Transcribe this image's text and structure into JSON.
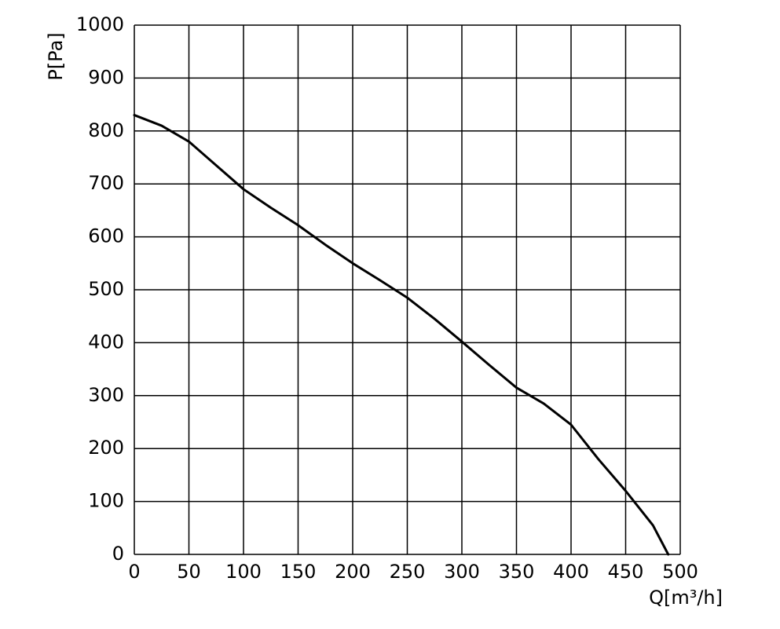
{
  "chart_data": {
    "type": "line",
    "ylabel": "P[Pa]",
    "xlabel": "Q[m³/h]",
    "x": [
      0,
      25,
      50,
      75,
      100,
      125,
      150,
      175,
      200,
      225,
      250,
      275,
      300,
      325,
      350,
      375,
      400,
      425,
      450,
      475,
      489
    ],
    "series": [
      {
        "color": "#000000",
        "values": [
          830,
          810,
          780,
          735,
          690,
          655,
          622,
          585,
          550,
          518,
          485,
          445,
          402,
          358,
          315,
          285,
          245,
          180,
          120,
          55,
          0
        ]
      }
    ],
    "xlim": [
      0,
      500
    ],
    "xticks": [
      0,
      50,
      100,
      150,
      200,
      250,
      300,
      350,
      400,
      450,
      500
    ],
    "ylim": [
      0,
      1000
    ],
    "yticks": [
      0,
      100,
      200,
      300,
      400,
      500,
      600,
      700,
      800,
      900,
      1000
    ],
    "grid": true
  }
}
